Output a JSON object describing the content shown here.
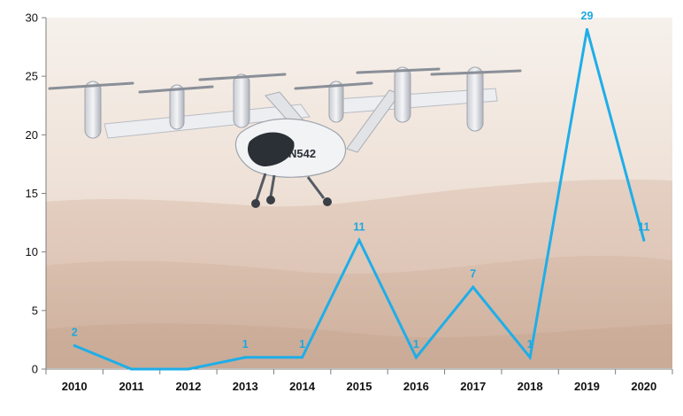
{
  "chart_data": {
    "type": "line",
    "title": "",
    "xlabel": "",
    "ylabel": "",
    "categories": [
      "2010",
      "2011",
      "2012",
      "2013",
      "2014",
      "2015",
      "2016",
      "2017",
      "2018",
      "2019",
      "2020"
    ],
    "series": [
      {
        "values": [
          2,
          0,
          0,
          1,
          1,
          11,
          1,
          7,
          1,
          29,
          11
        ],
        "data_labels": [
          "2",
          "",
          "",
          "1",
          "1",
          "11",
          "1",
          "7",
          "1",
          "29",
          "11"
        ],
        "color": "#1eaee8"
      }
    ],
    "ylim": [
      0,
      30
    ],
    "yticks": [
      0,
      5,
      10,
      15,
      20,
      25,
      30
    ],
    "grid": false,
    "legend": "none",
    "background": "photograph of an eVTOL air taxi with tilting rotors flying over hazy hills at sunset",
    "colors": {
      "line": "#1eaee8",
      "data_label": "#1ba7df",
      "axis": "#7f7f7f",
      "sky_top": "#f3ece6",
      "hills": "#dcc3b3"
    }
  }
}
